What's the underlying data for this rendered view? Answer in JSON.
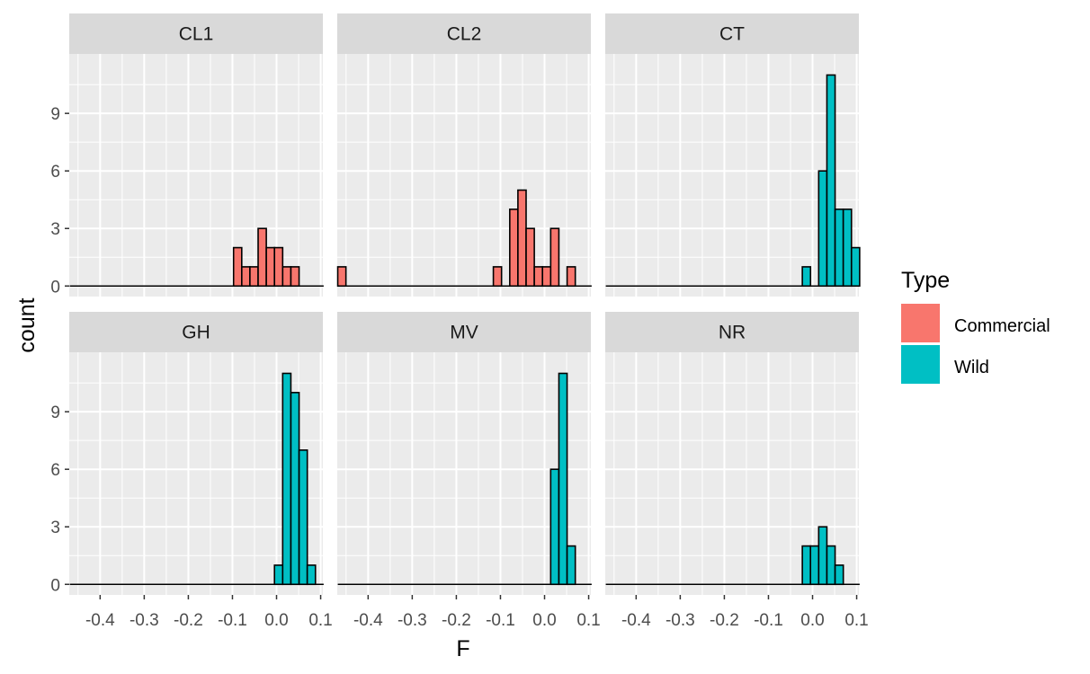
{
  "chart_data": {
    "type": "bar",
    "subtype": "faceted-histogram",
    "xlabel": "F",
    "ylabel": "count",
    "xlim": [
      -0.47,
      0.105
    ],
    "ylim": [
      -0.55,
      12.1
    ],
    "xticks": [
      -0.4,
      -0.3,
      -0.2,
      -0.1,
      0.0,
      0.1
    ],
    "xtick_labels": [
      "-0.4",
      "-0.3",
      "-0.2",
      "-0.1",
      "0.0",
      "0.1"
    ],
    "yticks": [
      0,
      3,
      6,
      9
    ],
    "ytick_labels": [
      "0",
      "3",
      "6",
      "9"
    ],
    "bin_width": 0.01857,
    "grid": true,
    "legend": {
      "title": "Type",
      "position": "right",
      "entries": [
        {
          "name": "Commercial",
          "color": "#F8766D"
        },
        {
          "name": "Wild",
          "color": "#00BFC4"
        }
      ]
    },
    "bin_centers": [
      -0.4596,
      -0.441,
      -0.4225,
      -0.4039,
      -0.3853,
      -0.3668,
      -0.3482,
      -0.3296,
      -0.311,
      -0.2925,
      -0.2739,
      -0.2553,
      -0.2368,
      -0.2182,
      -0.1996,
      -0.1811,
      -0.1625,
      -0.1439,
      -0.1254,
      -0.1068,
      -0.0882,
      -0.0696,
      -0.0511,
      -0.0325,
      -0.0139,
      0.0046,
      0.0232,
      0.0418,
      0.0604,
      0.0789,
      0.0975
    ],
    "series": [
      {
        "name": "CL1",
        "type": "Commercial",
        "counts": [
          0,
          0,
          0,
          0,
          0,
          0,
          0,
          0,
          0,
          0,
          0,
          0,
          0,
          0,
          0,
          0,
          0,
          0,
          0,
          0,
          2,
          1,
          1,
          3,
          2,
          2,
          1,
          1,
          0,
          0,
          0
        ]
      },
      {
        "name": "CL2",
        "type": "Commercial",
        "counts": [
          1,
          0,
          0,
          0,
          0,
          0,
          0,
          0,
          0,
          0,
          0,
          0,
          0,
          0,
          0,
          0,
          0,
          0,
          0,
          1,
          0,
          4,
          5,
          3,
          1,
          1,
          3,
          0,
          1,
          0,
          0
        ]
      },
      {
        "name": "CT",
        "type": "Wild",
        "counts": [
          0,
          0,
          0,
          0,
          0,
          0,
          0,
          0,
          0,
          0,
          0,
          0,
          0,
          0,
          0,
          0,
          0,
          0,
          0,
          0,
          0,
          0,
          0,
          0,
          1,
          0,
          6,
          11,
          4,
          4,
          2
        ]
      },
      {
        "name": "GH",
        "type": "Wild",
        "counts": [
          0,
          0,
          0,
          0,
          0,
          0,
          0,
          0,
          0,
          0,
          0,
          0,
          0,
          0,
          0,
          0,
          0,
          0,
          0,
          0,
          0,
          0,
          0,
          0,
          0,
          1,
          11,
          10,
          7,
          1,
          0
        ]
      },
      {
        "name": "MV",
        "type": "Wild",
        "counts": [
          0,
          0,
          0,
          0,
          0,
          0,
          0,
          0,
          0,
          0,
          0,
          0,
          0,
          0,
          0,
          0,
          0,
          0,
          0,
          0,
          0,
          0,
          0,
          0,
          0,
          0,
          6,
          11,
          2,
          0,
          0
        ]
      },
      {
        "name": "NR",
        "type": "Wild",
        "counts": [
          0,
          0,
          0,
          0,
          0,
          0,
          0,
          0,
          0,
          0,
          0,
          0,
          0,
          0,
          0,
          0,
          0,
          0,
          0,
          0,
          0,
          0,
          0,
          0,
          2,
          2,
          3,
          2,
          1,
          0,
          0
        ]
      }
    ]
  }
}
